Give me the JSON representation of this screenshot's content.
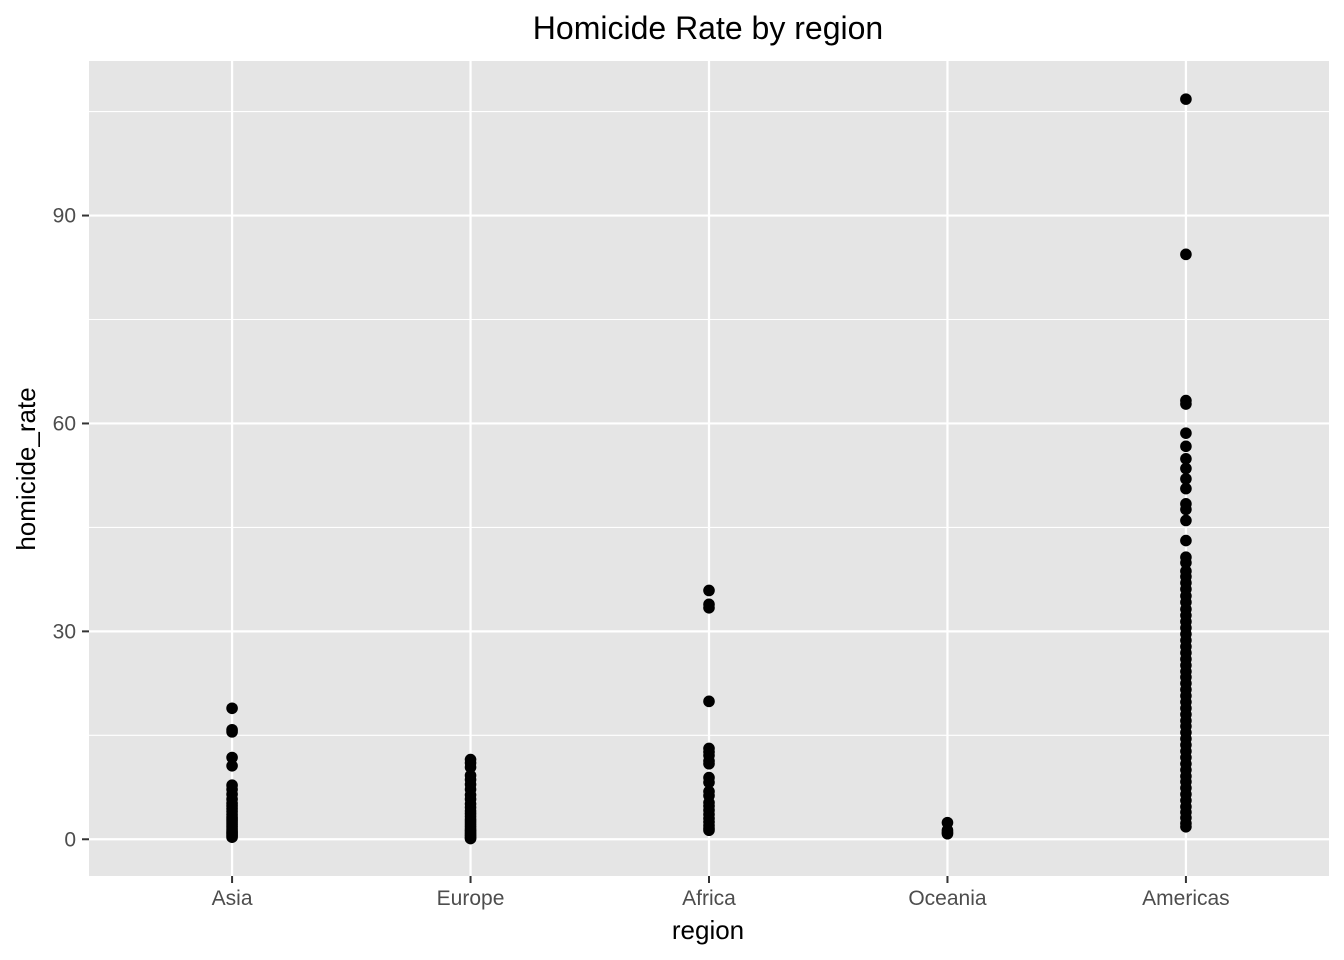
{
  "chart_data": {
    "type": "scatter",
    "title": "Homicide Rate by region",
    "xlabel": "region",
    "ylabel": "homicide_rate",
    "categories": [
      "Asia",
      "Europe",
      "Africa",
      "Oceania",
      "Americas"
    ],
    "ylim": [
      -5.3,
      112.3
    ],
    "yticks": [
      0,
      30,
      60,
      90
    ],
    "yticklabels": [
      "0",
      "30",
      "60",
      "90"
    ],
    "grid": true,
    "panel_background": "#e5e5e5",
    "grid_color": "#ffffff",
    "point_color": "#000000",
    "points": [
      {
        "region": "Asia",
        "values": [
          18.9,
          15.8,
          15.5,
          11.8,
          10.6,
          7.8,
          7.2,
          6.5,
          5.8,
          5.2,
          4.8,
          4.4,
          4.0,
          3.6,
          3.2,
          2.9,
          2.6,
          2.3,
          2.0,
          1.7,
          1.4,
          1.1,
          0.9,
          0.7,
          0.5,
          0.3
        ]
      },
      {
        "region": "Europe",
        "values": [
          11.5,
          11.0,
          10.4,
          9.2,
          8.6,
          7.9,
          7.2,
          6.4,
          5.8,
          5.1,
          4.6,
          4.1,
          3.7,
          3.3,
          2.9,
          2.6,
          2.3,
          2.0,
          1.7,
          1.4,
          1.2,
          1.0,
          0.8,
          0.6,
          0.4,
          0.2,
          0.1
        ]
      },
      {
        "region": "Africa",
        "values": [
          35.9,
          33.9,
          33.4,
          19.9,
          13.1,
          12.6,
          12.1,
          11.3,
          10.9,
          8.9,
          8.2,
          6.9,
          6.3,
          5.3,
          4.8,
          4.2,
          3.6,
          3.0,
          2.5,
          2.0,
          1.6,
          1.3
        ]
      },
      {
        "region": "Oceania",
        "values": [
          2.4,
          1.3,
          1.0,
          0.8
        ]
      },
      {
        "region": "Americas",
        "values": [
          106.8,
          84.4,
          63.3,
          62.8,
          58.6,
          56.7,
          54.9,
          53.5,
          52.0,
          50.6,
          48.4,
          47.6,
          46.0,
          43.1,
          40.7,
          39.9,
          38.7,
          37.9,
          37.0,
          36.1,
          35.1,
          34.2,
          33.2,
          32.3,
          31.4,
          30.5,
          29.6,
          28.7,
          27.8,
          26.9,
          26.0,
          25.1,
          24.2,
          23.4,
          22.5,
          21.6,
          20.7,
          19.8,
          18.9,
          18.0,
          17.1,
          16.3,
          15.4,
          14.5,
          13.6,
          12.7,
          11.8,
          10.9,
          10.0,
          9.1,
          8.3,
          7.4,
          6.5,
          5.6,
          4.7,
          3.9,
          3.1,
          2.3,
          1.8
        ]
      }
    ]
  }
}
